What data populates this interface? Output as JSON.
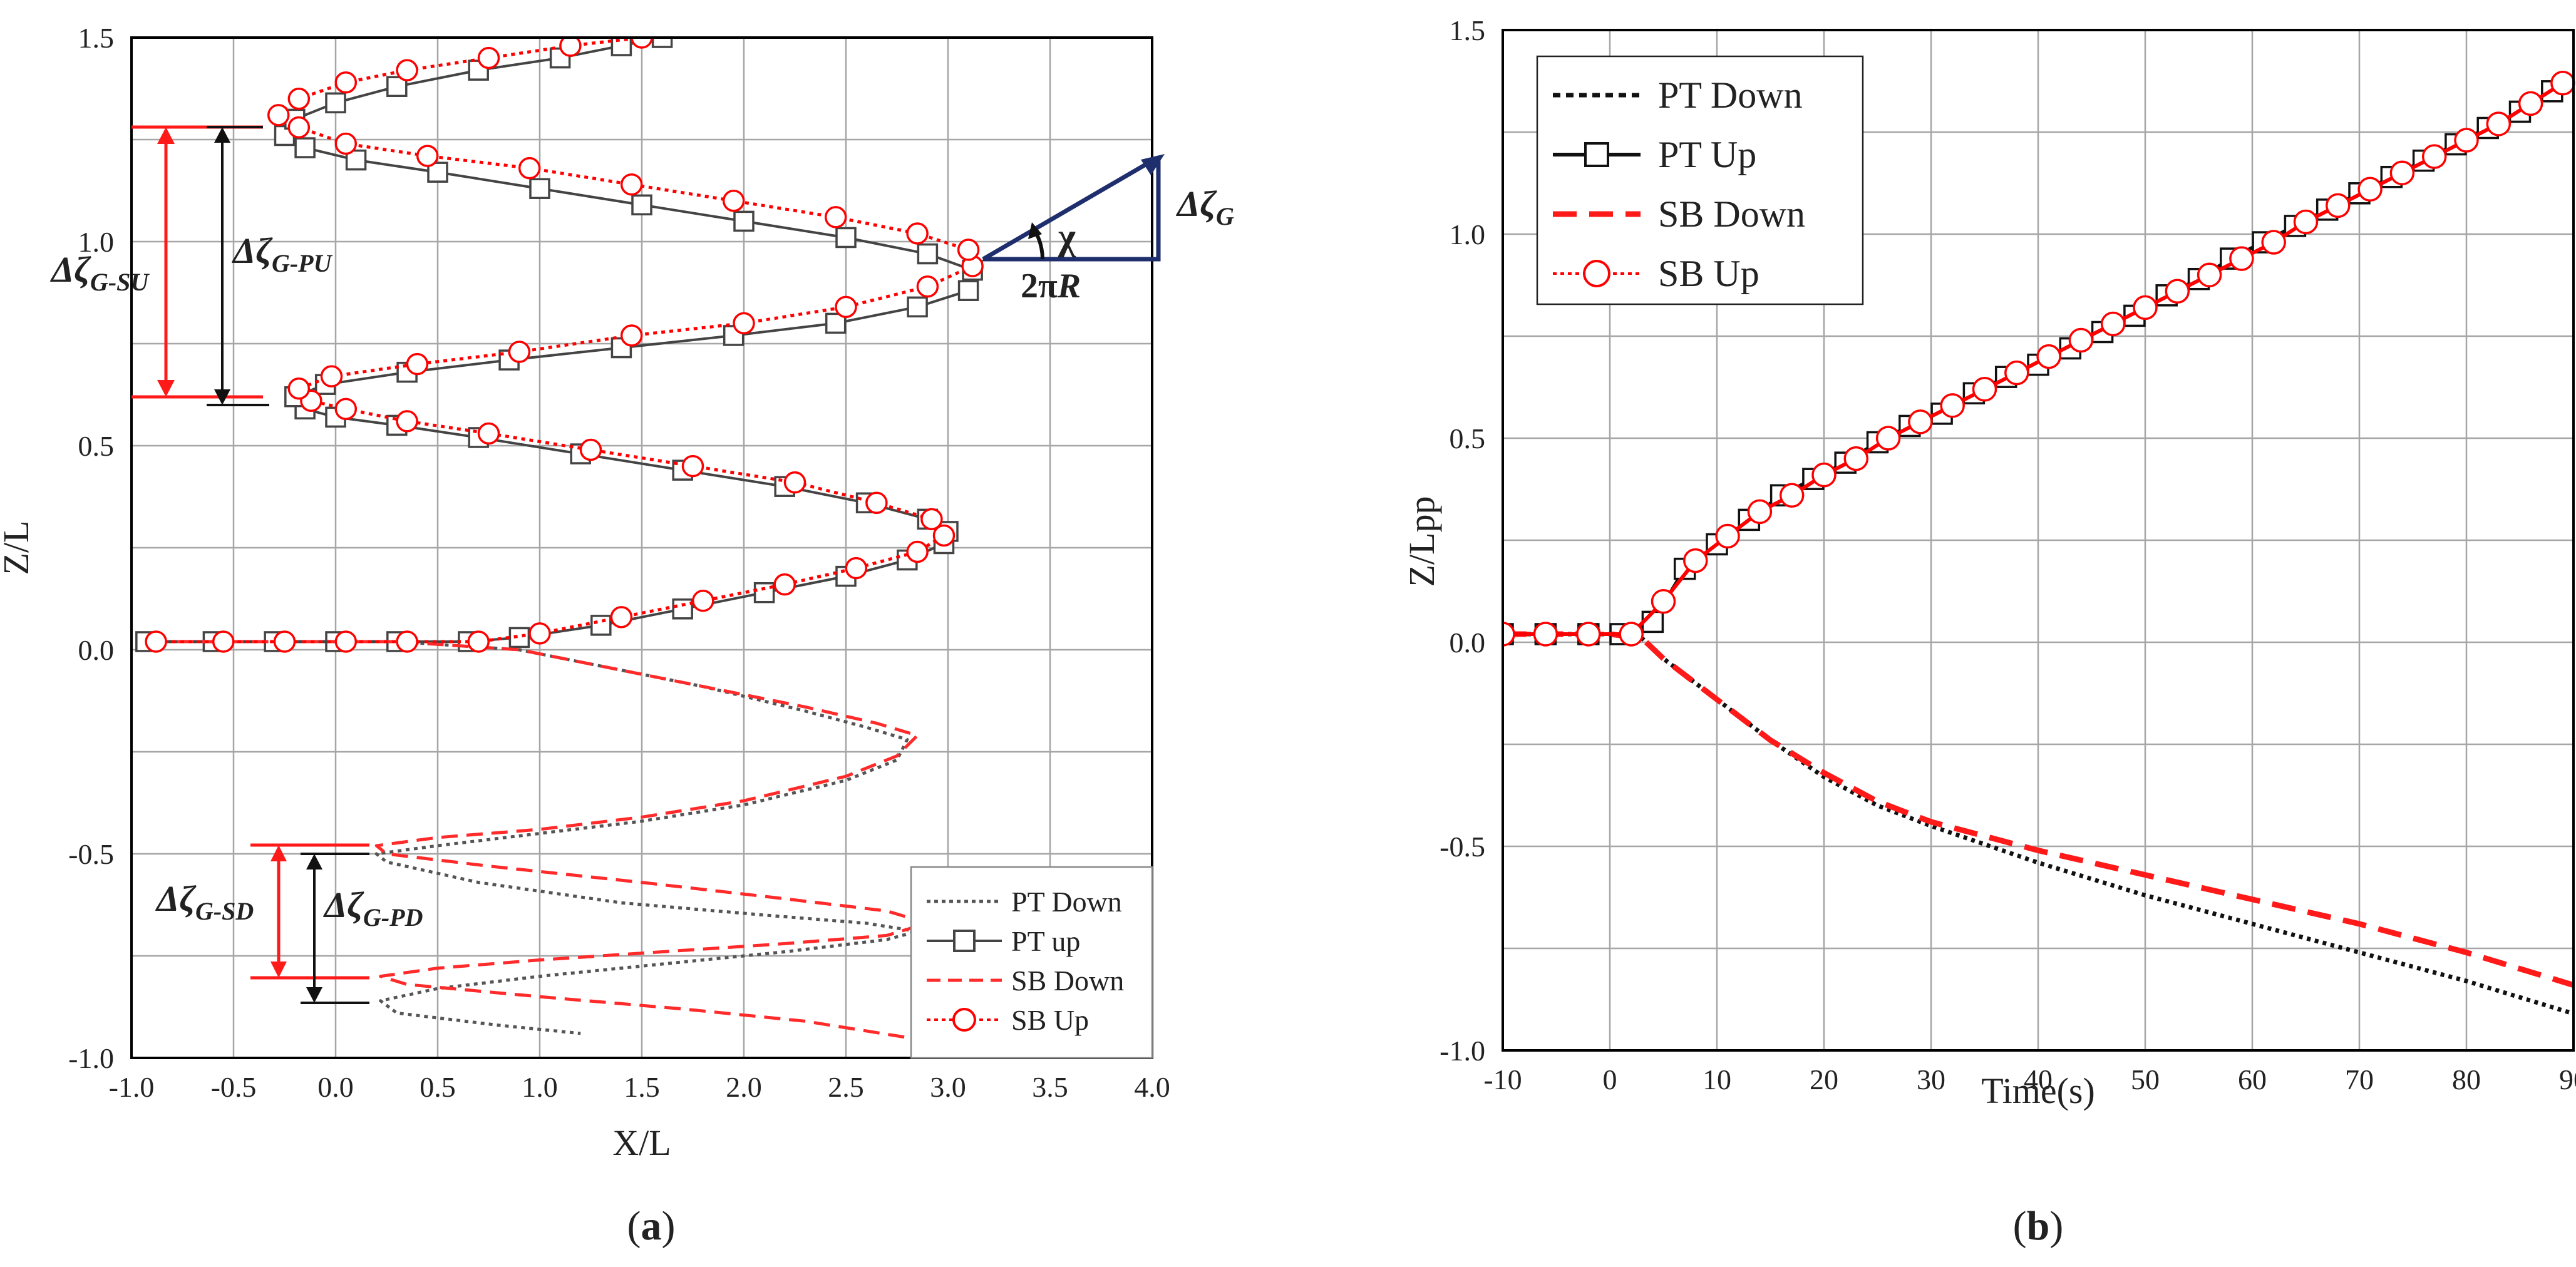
{
  "chart_data": [
    {
      "type": "line",
      "panel_label_prefix": "(",
      "panel_label": "a",
      "panel_label_suffix": ")",
      "xlabel": "X/L",
      "ylabel": "Z/L",
      "xlim": [
        -1.0,
        4.0
      ],
      "ylim": [
        -1.0,
        1.5
      ],
      "xticks": [
        "-1.0",
        "-0.5",
        "0.0",
        "0.5",
        "1.0",
        "1.5",
        "2.0",
        "2.5",
        "3.0",
        "3.5",
        "4.0"
      ],
      "yticks": [
        "-1.0",
        "-0.5",
        "0.0",
        "0.5",
        "1.0",
        "1.5"
      ],
      "grid": true,
      "legend_position": "bottom-right",
      "series": [
        {
          "name": "PT Down",
          "color": "#555555",
          "style": "dotted",
          "x": [
            -0.9,
            0.3,
            0.9,
            1.3,
            1.8,
            2.3,
            2.6,
            2.8,
            2.75,
            2.5,
            2.0,
            1.5,
            1.0,
            0.5,
            0.2,
            0.25,
            0.7,
            1.4,
            2.1,
            2.6,
            2.85,
            2.7,
            2.2,
            1.6,
            1.0,
            0.5,
            0.22,
            0.3,
            0.8,
            1.2
          ],
          "y": [
            0.02,
            0.02,
            0.0,
            -0.04,
            -0.09,
            -0.15,
            -0.19,
            -0.22,
            -0.27,
            -0.32,
            -0.38,
            -0.42,
            -0.45,
            -0.48,
            -0.5,
            -0.52,
            -0.57,
            -0.62,
            -0.65,
            -0.67,
            -0.69,
            -0.71,
            -0.74,
            -0.77,
            -0.8,
            -0.83,
            -0.86,
            -0.89,
            -0.92,
            -0.94
          ]
        },
        {
          "name": "PT up",
          "color": "#444444",
          "style": "solid-square",
          "x": [
            -0.93,
            -0.6,
            -0.3,
            0.0,
            0.3,
            0.65,
            0.9,
            1.3,
            1.7,
            2.1,
            2.5,
            2.8,
            2.98,
            3.0,
            2.9,
            2.6,
            2.2,
            1.7,
            1.2,
            0.7,
            0.3,
            0.0,
            -0.15,
            -0.2,
            -0.05,
            0.35,
            0.85,
            1.4,
            1.95,
            2.45,
            2.85,
            3.1,
            3.12,
            2.9,
            2.5,
            2.0,
            1.5,
            1.0,
            0.5,
            0.1,
            -0.15,
            -0.25,
            -0.2,
            0.0,
            0.3,
            0.7,
            1.1,
            1.4,
            1.6
          ],
          "y": [
            0.02,
            0.02,
            0.02,
            0.02,
            0.02,
            0.02,
            0.03,
            0.06,
            0.1,
            0.14,
            0.18,
            0.22,
            0.26,
            0.29,
            0.32,
            0.36,
            0.4,
            0.44,
            0.48,
            0.52,
            0.55,
            0.57,
            0.59,
            0.62,
            0.65,
            0.68,
            0.71,
            0.74,
            0.77,
            0.8,
            0.84,
            0.88,
            0.93,
            0.97,
            1.01,
            1.05,
            1.09,
            1.13,
            1.17,
            1.2,
            1.23,
            1.26,
            1.3,
            1.34,
            1.38,
            1.42,
            1.45,
            1.48,
            1.5
          ]
        },
        {
          "name": "SB Down",
          "color": "#ff2a2a",
          "style": "dashed",
          "x": [
            -0.9,
            0.3,
            0.9,
            1.3,
            1.8,
            2.3,
            2.65,
            2.85,
            2.75,
            2.5,
            2.0,
            1.5,
            1.0,
            0.5,
            0.2,
            0.25,
            0.75,
            1.5,
            2.2,
            2.7,
            2.9,
            2.7,
            2.2,
            1.6,
            1.0,
            0.5,
            0.22,
            0.35,
            1.0,
            1.7,
            2.3,
            2.8
          ],
          "y": [
            0.02,
            0.02,
            0.0,
            -0.04,
            -0.09,
            -0.14,
            -0.18,
            -0.21,
            -0.26,
            -0.31,
            -0.37,
            -0.41,
            -0.44,
            -0.46,
            -0.48,
            -0.5,
            -0.53,
            -0.57,
            -0.61,
            -0.64,
            -0.67,
            -0.7,
            -0.72,
            -0.74,
            -0.76,
            -0.78,
            -0.8,
            -0.82,
            -0.85,
            -0.88,
            -0.91,
            -0.95
          ]
        },
        {
          "name": "SB Up",
          "color": "#ff0000",
          "style": "dotted-circle",
          "x": [
            -0.88,
            -0.55,
            -0.25,
            0.05,
            0.35,
            0.7,
            1.0,
            1.4,
            1.8,
            2.2,
            2.55,
            2.85,
            2.98,
            2.92,
            2.65,
            2.25,
            1.75,
            1.25,
            0.75,
            0.35,
            0.05,
            -0.12,
            -0.18,
            -0.02,
            0.4,
            0.9,
            1.45,
            2.0,
            2.5,
            2.9,
            3.12,
            3.1,
            2.85,
            2.45,
            1.95,
            1.45,
            0.95,
            0.45,
            0.05,
            -0.18,
            -0.28,
            -0.18,
            0.05,
            0.35,
            0.75,
            1.15,
            1.5
          ],
          "y": [
            0.02,
            0.02,
            0.02,
            0.02,
            0.02,
            0.02,
            0.04,
            0.08,
            0.12,
            0.16,
            0.2,
            0.24,
            0.28,
            0.32,
            0.36,
            0.41,
            0.45,
            0.49,
            0.53,
            0.56,
            0.59,
            0.61,
            0.64,
            0.67,
            0.7,
            0.73,
            0.77,
            0.8,
            0.84,
            0.89,
            0.94,
            0.98,
            1.02,
            1.06,
            1.1,
            1.14,
            1.18,
            1.21,
            1.24,
            1.28,
            1.31,
            1.35,
            1.39,
            1.42,
            1.45,
            1.48,
            1.5
          ]
        }
      ],
      "annotations": [
        {
          "text": "Δζ",
          "sub": "G-SU",
          "color": "#ff2020"
        },
        {
          "text": "Δζ",
          "sub": "G-PU",
          "color": "#111111"
        },
        {
          "text": "Δζ",
          "sub": "G-SD",
          "color": "#ff2020"
        },
        {
          "text": "Δζ",
          "sub": "G-PD",
          "color": "#111111"
        },
        {
          "text": "Δζ",
          "sub": "G",
          "color": "#111111"
        },
        {
          "text": "χ",
          "color": "#111111"
        },
        {
          "text": "2π",
          "suffix": "R",
          "color": "#111111"
        }
      ],
      "triangle_color": "#1f2f6e"
    },
    {
      "type": "line",
      "panel_label_prefix": "(",
      "panel_label": "b",
      "panel_label_suffix": ")",
      "xlabel": "Time(s)",
      "ylabel": "Z/Lpp",
      "xlim": [
        -10,
        90
      ],
      "ylim": [
        -1.0,
        1.5
      ],
      "xticks": [
        "-10",
        "0",
        "10",
        "20",
        "30",
        "40",
        "50",
        "60",
        "70",
        "80",
        "90"
      ],
      "yticks": [
        "-1.0",
        "-0.5",
        "0.0",
        "0.5",
        "1.0",
        "1.5"
      ],
      "grid": true,
      "legend_position": "top-left",
      "series": [
        {
          "name": "PT Down",
          "color": "#111111",
          "style": "dotted",
          "x": [
            -10,
            0,
            3,
            5,
            10,
            15,
            20,
            25,
            30,
            40,
            50,
            60,
            70,
            80,
            90
          ],
          "y": [
            0.02,
            0.02,
            0.01,
            -0.04,
            -0.14,
            -0.24,
            -0.33,
            -0.4,
            -0.45,
            -0.54,
            -0.62,
            -0.69,
            -0.76,
            -0.83,
            -0.91
          ]
        },
        {
          "name": "PT Up",
          "color": "#111111",
          "style": "solid-square",
          "x": [
            -10,
            -6,
            -2,
            1,
            4,
            7,
            10,
            13,
            16,
            19,
            22,
            25,
            28,
            31,
            34,
            37,
            40,
            43,
            46,
            49,
            52,
            55,
            58,
            61,
            64,
            67,
            70,
            73,
            76,
            79,
            82,
            85,
            88
          ],
          "y": [
            0.02,
            0.02,
            0.02,
            0.02,
            0.05,
            0.18,
            0.24,
            0.3,
            0.36,
            0.4,
            0.44,
            0.49,
            0.53,
            0.56,
            0.61,
            0.65,
            0.68,
            0.72,
            0.76,
            0.8,
            0.85,
            0.89,
            0.94,
            0.98,
            1.02,
            1.06,
            1.1,
            1.14,
            1.18,
            1.22,
            1.26,
            1.3,
            1.35
          ]
        },
        {
          "name": "SB Down",
          "color": "#ff1a1a",
          "style": "dashed",
          "x": [
            -10,
            0,
            3,
            5,
            10,
            15,
            20,
            25,
            30,
            40,
            50,
            60,
            70,
            80,
            90
          ],
          "y": [
            0.02,
            0.02,
            0.01,
            -0.04,
            -0.14,
            -0.24,
            -0.32,
            -0.39,
            -0.44,
            -0.51,
            -0.57,
            -0.63,
            -0.69,
            -0.76,
            -0.84
          ]
        },
        {
          "name": "SB Up",
          "color": "#ff0000",
          "style": "solid-circle",
          "x": [
            -10,
            -6,
            -2,
            2,
            5,
            8,
            11,
            14,
            17,
            20,
            23,
            26,
            29,
            32,
            35,
            38,
            41,
            44,
            47,
            50,
            53,
            56,
            59,
            62,
            65,
            68,
            71,
            74,
            77,
            80,
            83,
            86,
            89
          ],
          "y": [
            0.02,
            0.02,
            0.02,
            0.02,
            0.1,
            0.2,
            0.26,
            0.32,
            0.36,
            0.41,
            0.45,
            0.5,
            0.54,
            0.58,
            0.62,
            0.66,
            0.7,
            0.74,
            0.78,
            0.82,
            0.86,
            0.9,
            0.94,
            0.98,
            1.03,
            1.07,
            1.11,
            1.15,
            1.19,
            1.23,
            1.27,
            1.32,
            1.37
          ]
        }
      ]
    }
  ]
}
